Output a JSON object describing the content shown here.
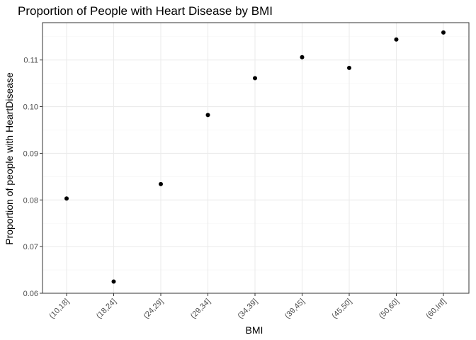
{
  "chart_data": {
    "type": "scatter",
    "title": "Proportion of People with Heart Disease by BMI",
    "xlabel": "BMI",
    "ylabel": "Proportion of people with HeartDisease",
    "categories": [
      "(10,18]",
      "(18,24]",
      "(24,29]",
      "(29,34]",
      "(34,39]",
      "(39,45]",
      "(45,50]",
      "(50,60]",
      "(60,Inf]"
    ],
    "values": [
      0.0803,
      0.0625,
      0.0834,
      0.0982,
      0.1061,
      0.1106,
      0.1083,
      0.1144,
      0.1159
    ],
    "ylim": [
      0.06,
      0.118
    ],
    "yticks": [
      0.06,
      0.07,
      0.08,
      0.09,
      0.1,
      0.11
    ],
    "ytick_labels": [
      "0.06",
      "0.07",
      "0.08",
      "0.09",
      "0.10",
      "0.11"
    ],
    "grid": true,
    "point_color": "#000000"
  }
}
